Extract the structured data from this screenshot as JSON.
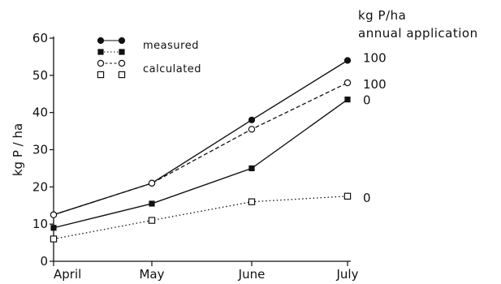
{
  "chart_data": {
    "type": "line",
    "categories": [
      "April",
      "May",
      "June",
      "July"
    ],
    "ylabel": "kg P / ha",
    "xlabel": "",
    "ylim": [
      0,
      60
    ],
    "yticks": [
      0,
      10,
      20,
      30,
      40,
      50,
      60
    ],
    "grid": false,
    "legend": {
      "placement": "top-left",
      "entries": [
        {
          "label": "measured",
          "markers": [
            "filled-circle",
            "filled-square"
          ]
        },
        {
          "label": "calculated",
          "markers": [
            "open-circle",
            "open-square"
          ]
        }
      ]
    },
    "right_header": [
      "kg P/ha",
      "annual application"
    ],
    "series": [
      {
        "kind": "measured",
        "marker": "filled-circle",
        "line": "solid",
        "values": [
          12.5,
          21,
          38,
          54
        ],
        "end_label": "100"
      },
      {
        "kind": "calculated",
        "marker": "open-circle",
        "line": "dashed",
        "values": [
          12.5,
          21,
          35.5,
          48
        ],
        "end_label": "100"
      },
      {
        "kind": "measured",
        "marker": "filled-square",
        "line": "solid",
        "values": [
          9,
          15.5,
          25,
          43.5
        ],
        "end_label": "0"
      },
      {
        "kind": "calculated",
        "marker": "open-square",
        "line": "dotted",
        "values": [
          6,
          11,
          16,
          17.5
        ],
        "end_label": "0"
      }
    ]
  }
}
